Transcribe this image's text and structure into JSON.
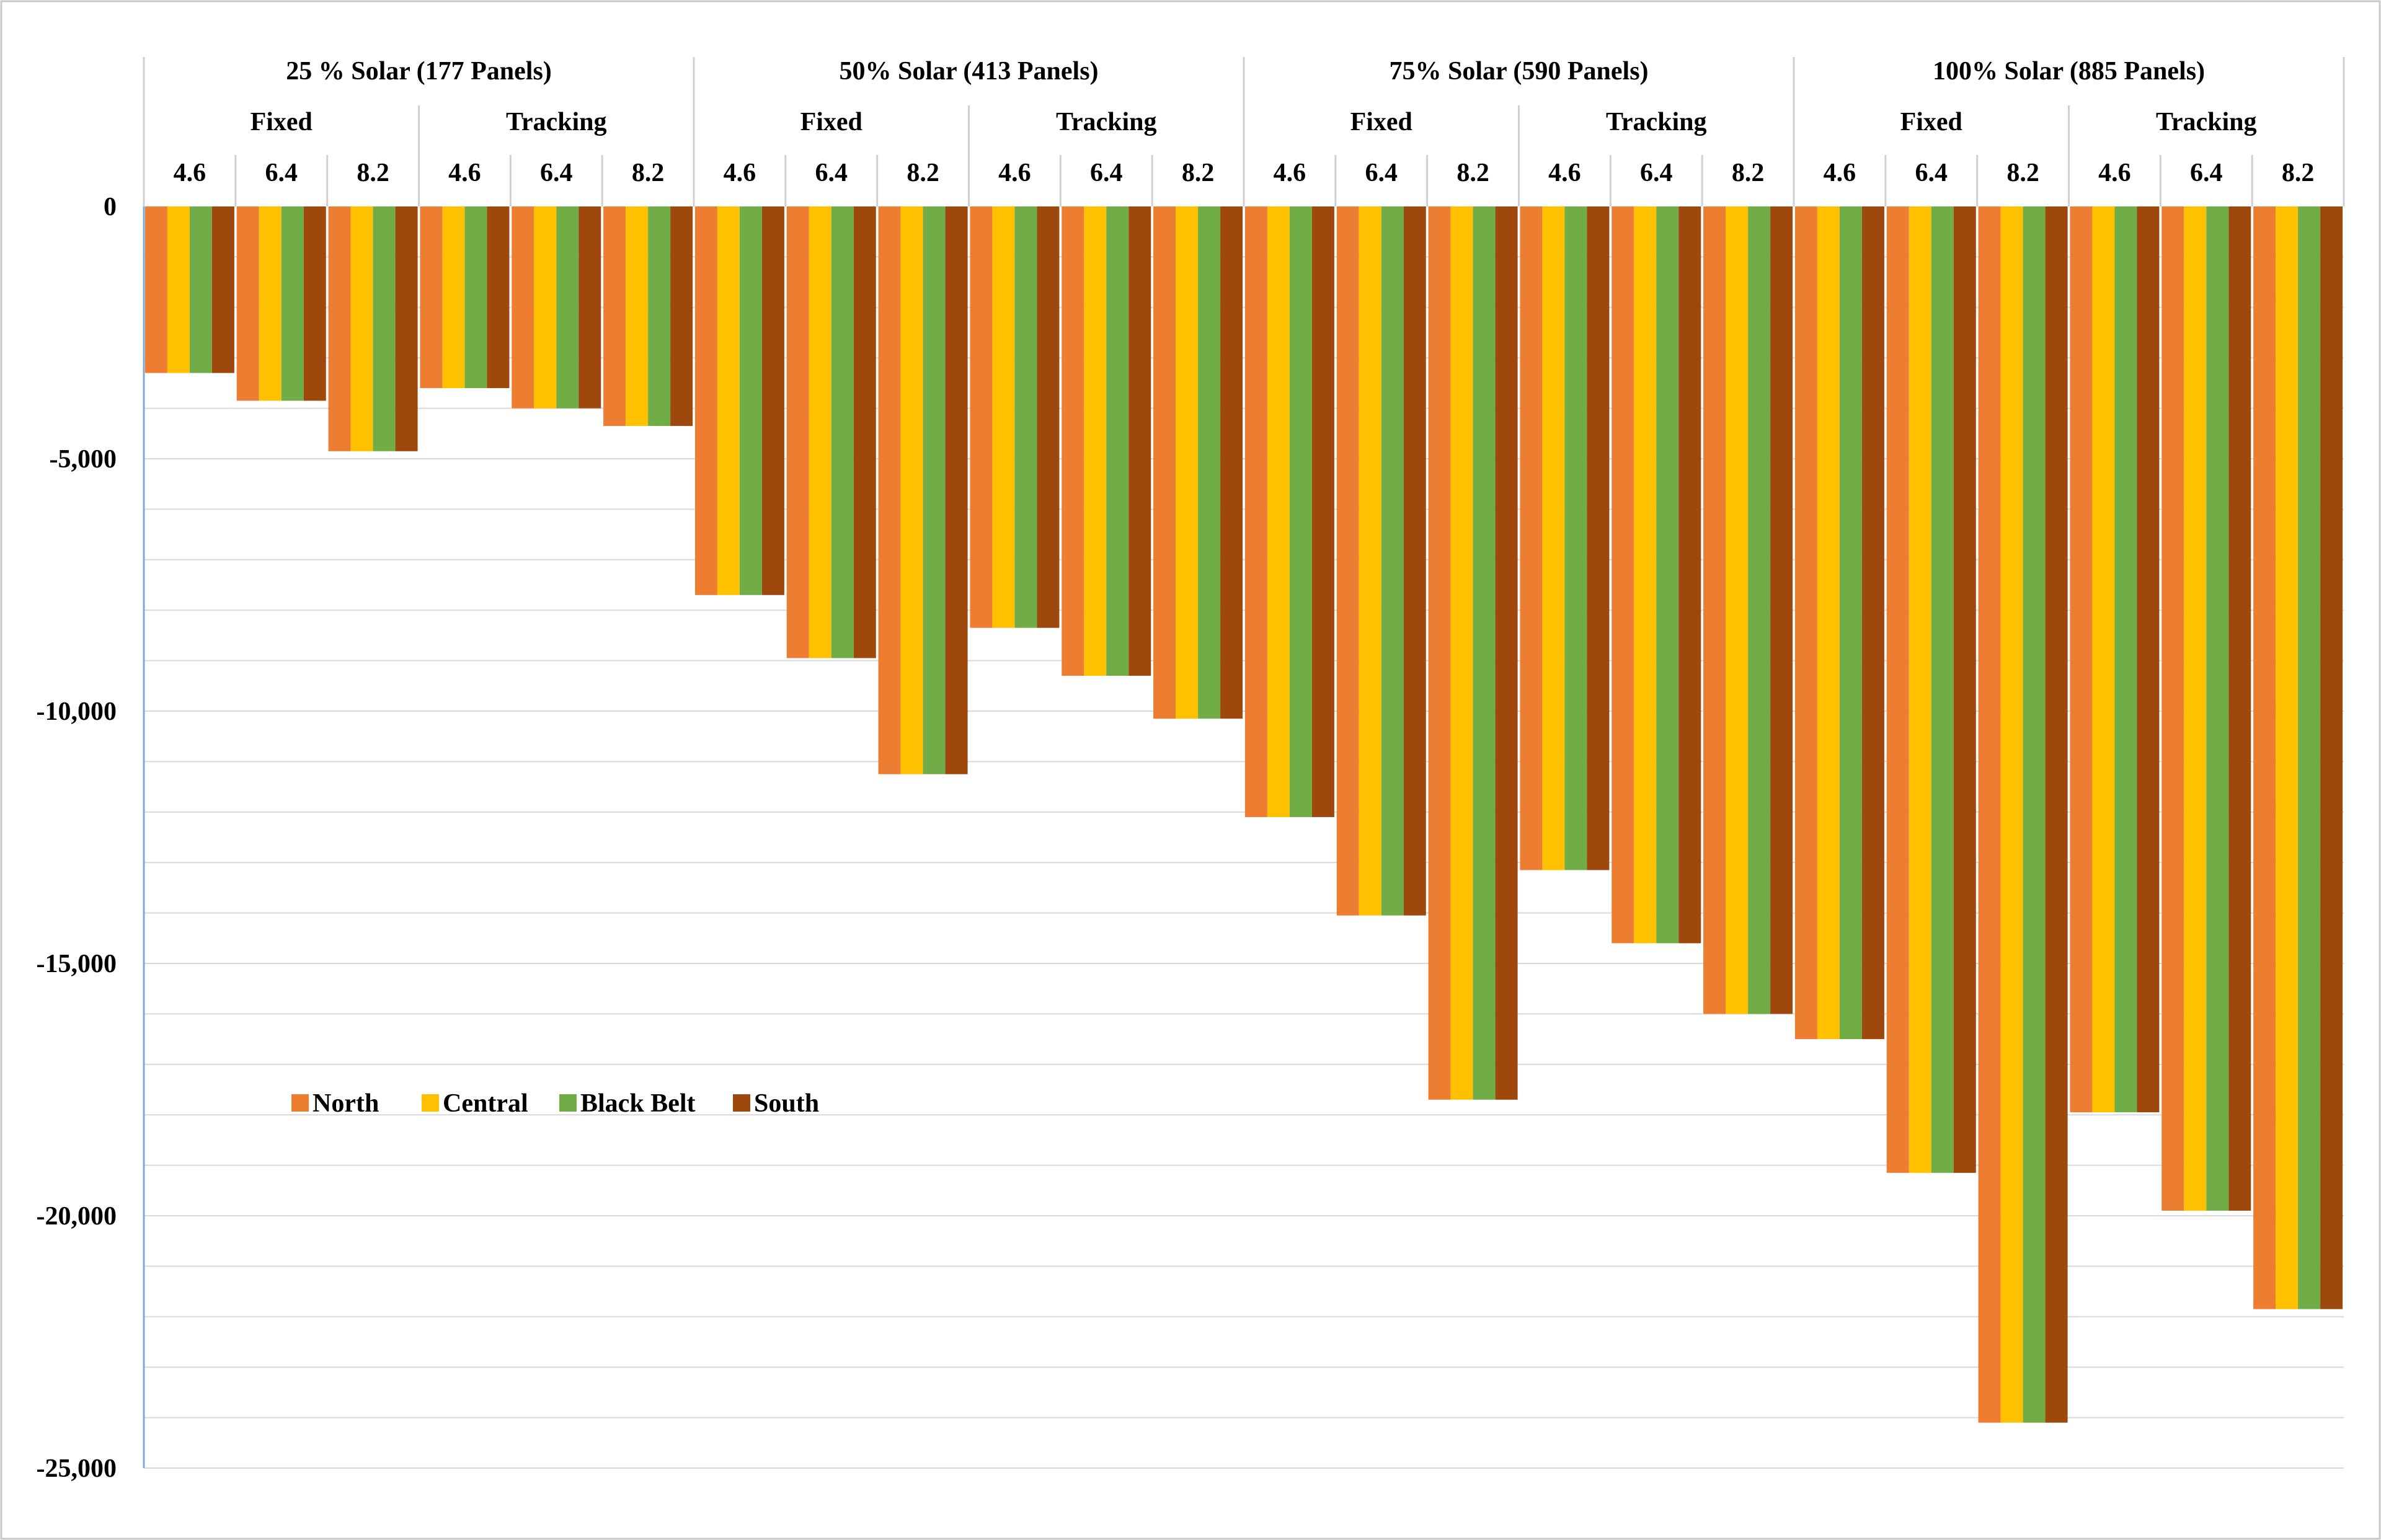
{
  "chart_data": {
    "type": "bar",
    "title": "",
    "xlabel": "",
    "ylabel": "",
    "ylim": [
      -25000,
      0
    ],
    "yticks": [
      "0",
      "-5,000",
      "-10,000",
      "-15,000",
      "-20,000",
      "-25,000"
    ],
    "ytick_values": [
      0,
      -5000,
      -10000,
      -15000,
      -20000,
      -25000
    ],
    "grid": true,
    "legend_position": "lower-left",
    "colors": {
      "North": "#ed7d31",
      "Central": "#ffc000",
      "Black Belt": "#70ad47",
      "South": "#9e480e"
    },
    "levels": [
      "25 % Solar (177 Panels)",
      "50% Solar (413 Panels)",
      "75% Solar (590 Panels)",
      "100% Solar (885 Panels)"
    ],
    "modes": [
      "Fixed",
      "Tracking"
    ],
    "sizes": [
      "4.6",
      "6.4",
      "8.2"
    ],
    "series": [
      {
        "name": "North",
        "values": [
          -3300,
          -3850,
          -4850,
          -3600,
          -4000,
          -4350,
          -7700,
          -8950,
          -11250,
          -8350,
          -9300,
          -10150,
          -12100,
          -14050,
          -17700,
          -13150,
          -14600,
          -16000,
          -16500,
          -19150,
          -24100,
          -17950,
          -19900,
          -21850
        ]
      },
      {
        "name": "Central",
        "values": [
          -3300,
          -3850,
          -4850,
          -3600,
          -4000,
          -4350,
          -7700,
          -8950,
          -11250,
          -8350,
          -9300,
          -10150,
          -12100,
          -14050,
          -17700,
          -13150,
          -14600,
          -16000,
          -16500,
          -19150,
          -24100,
          -17950,
          -19900,
          -21850
        ]
      },
      {
        "name": "Black Belt",
        "values": [
          -3300,
          -3850,
          -4850,
          -3600,
          -4000,
          -4350,
          -7700,
          -8950,
          -11250,
          -8350,
          -9300,
          -10150,
          -12100,
          -14050,
          -17700,
          -13150,
          -14600,
          -16000,
          -16500,
          -19150,
          -24100,
          -17950,
          -19900,
          -21850
        ]
      },
      {
        "name": "South",
        "values": [
          -3300,
          -3850,
          -4850,
          -3600,
          -4000,
          -4350,
          -7700,
          -8950,
          -11250,
          -8350,
          -9300,
          -10150,
          -12100,
          -14050,
          -17700,
          -13150,
          -14600,
          -16000,
          -16500,
          -19150,
          -24100,
          -17950,
          -19900,
          -21850
        ]
      }
    ]
  }
}
